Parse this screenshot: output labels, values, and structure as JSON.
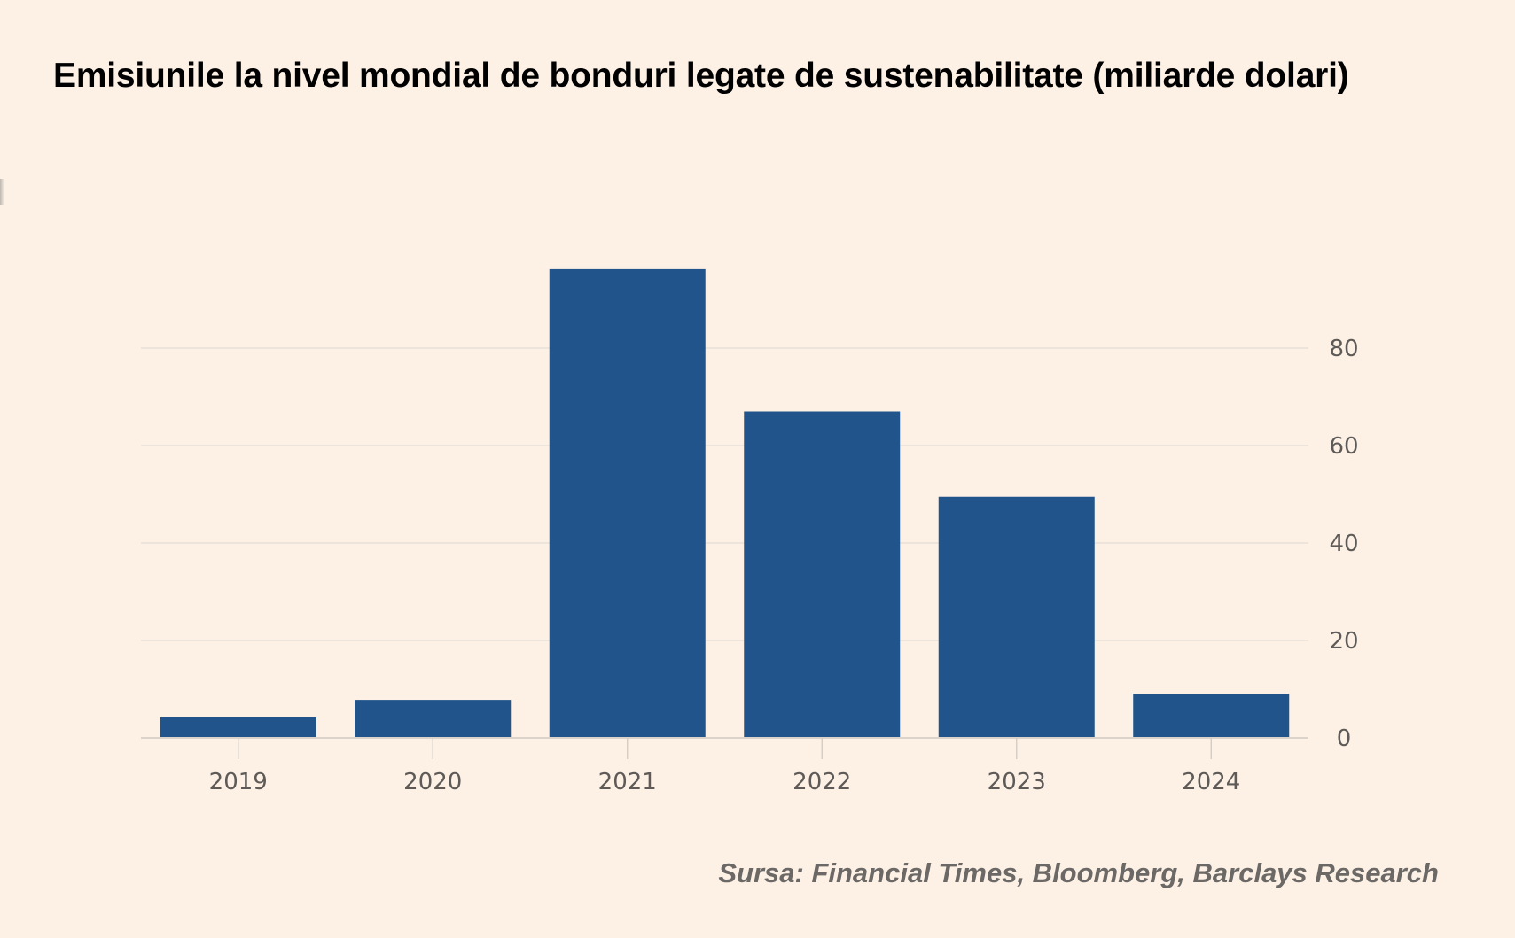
{
  "title": "Emisiunile la nivel mondial de bonduri legate de sustenabilitate (miliarde dolari)",
  "source": "Sursa: Financial Times, Bloomberg, Barclays Research",
  "colors": {
    "bar": "#21548b",
    "background": "#fdf1e6",
    "grid": "#e8e1d8",
    "text": "#5e5a57"
  },
  "chart_data": {
    "type": "bar",
    "title": "Emisiunile la nivel mondial de bonduri legate de sustenabilitate (miliarde dolari)",
    "xlabel": "",
    "ylabel": "",
    "categories": [
      "2019",
      "2020",
      "2021",
      "2022",
      "2023",
      "2024"
    ],
    "values": [
      4.2,
      7.8,
      96.2,
      67.0,
      49.5,
      9.0
    ],
    "ylim": [
      0,
      80
    ],
    "yticks": [
      0,
      20,
      40,
      60,
      80
    ],
    "yaxis_side": "right",
    "grid": true,
    "legend": "none",
    "source": "Sursa: Financial Times, Bloomberg, Barclays Research"
  }
}
